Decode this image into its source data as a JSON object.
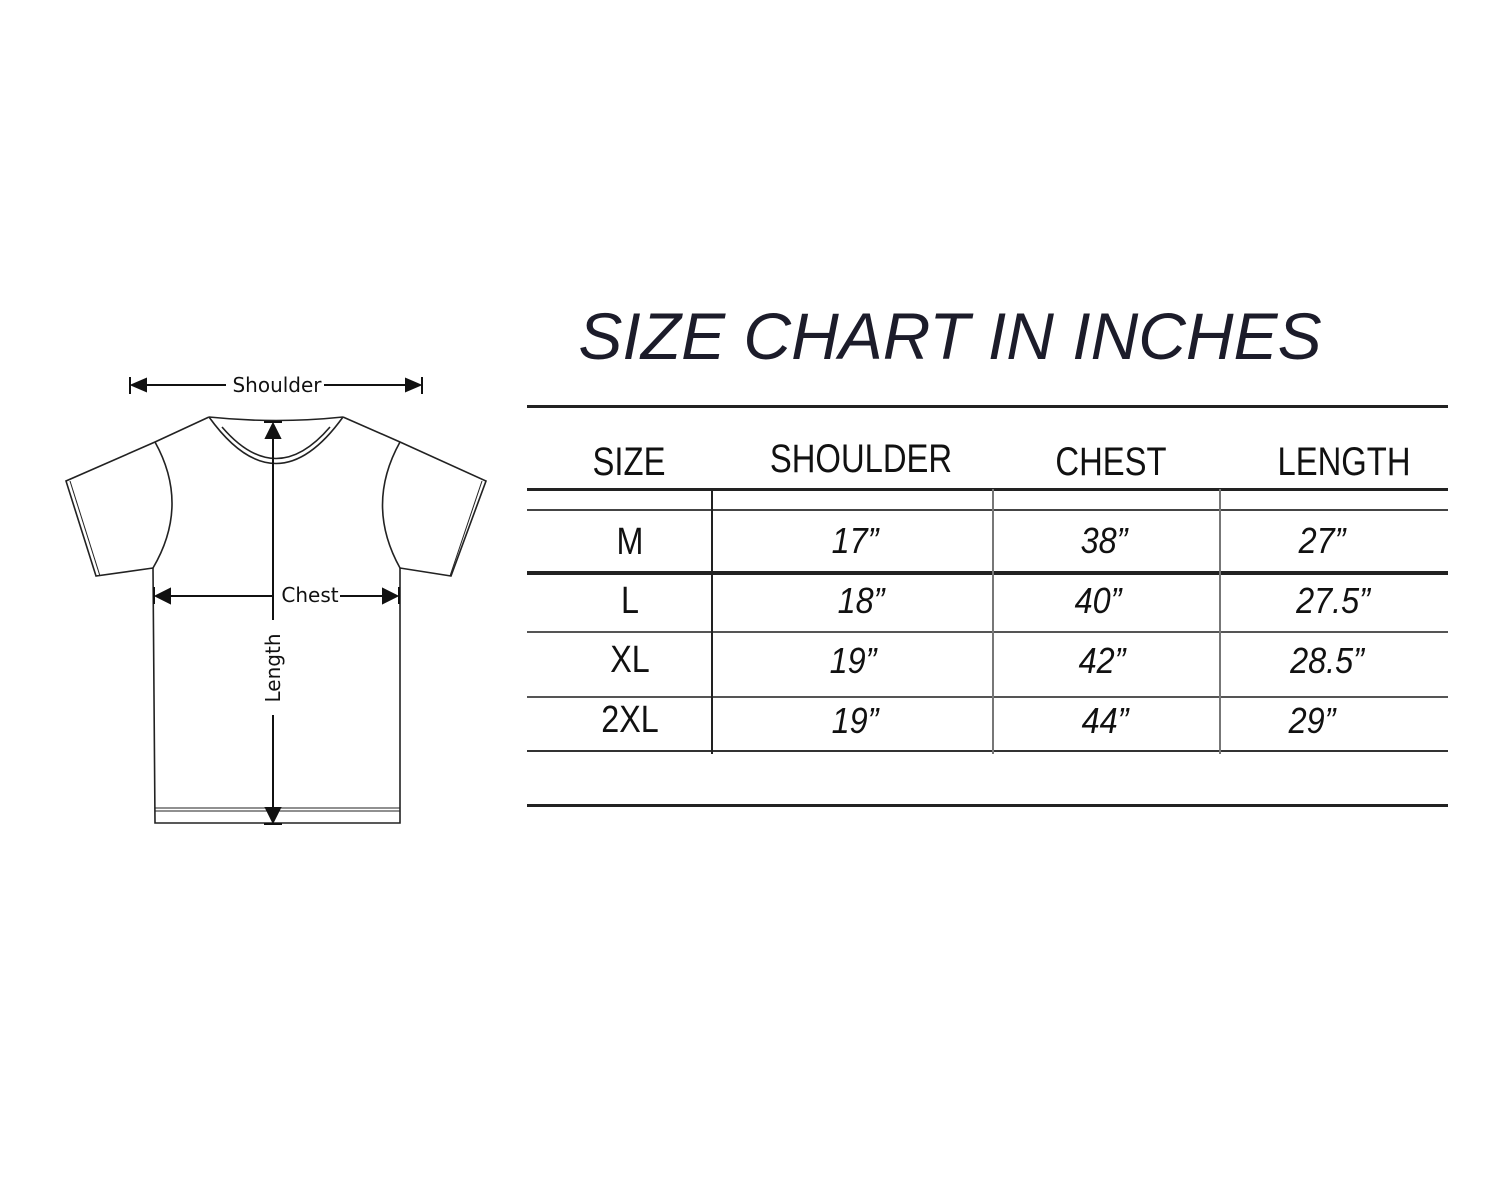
{
  "title": "SIZE CHART IN INCHES",
  "diagram": {
    "shoulder_label": "Shoulder",
    "chest_label": "Chest",
    "length_label": "Length"
  },
  "table": {
    "headers": [
      "SIZE",
      "SHOULDER",
      "CHEST",
      "LENGTH"
    ],
    "rows": [
      {
        "size": "M",
        "shoulder": "17”",
        "chest": "38”",
        "length": "27”"
      },
      {
        "size": "L",
        "shoulder": "18”",
        "chest": "40”",
        "length": "27.5”"
      },
      {
        "size": "XL",
        "shoulder": "19”",
        "chest": "42”",
        "length": "28.5”"
      },
      {
        "size": "2XL",
        "shoulder": "19”",
        "chest": "44”",
        "length": "29”"
      }
    ]
  }
}
